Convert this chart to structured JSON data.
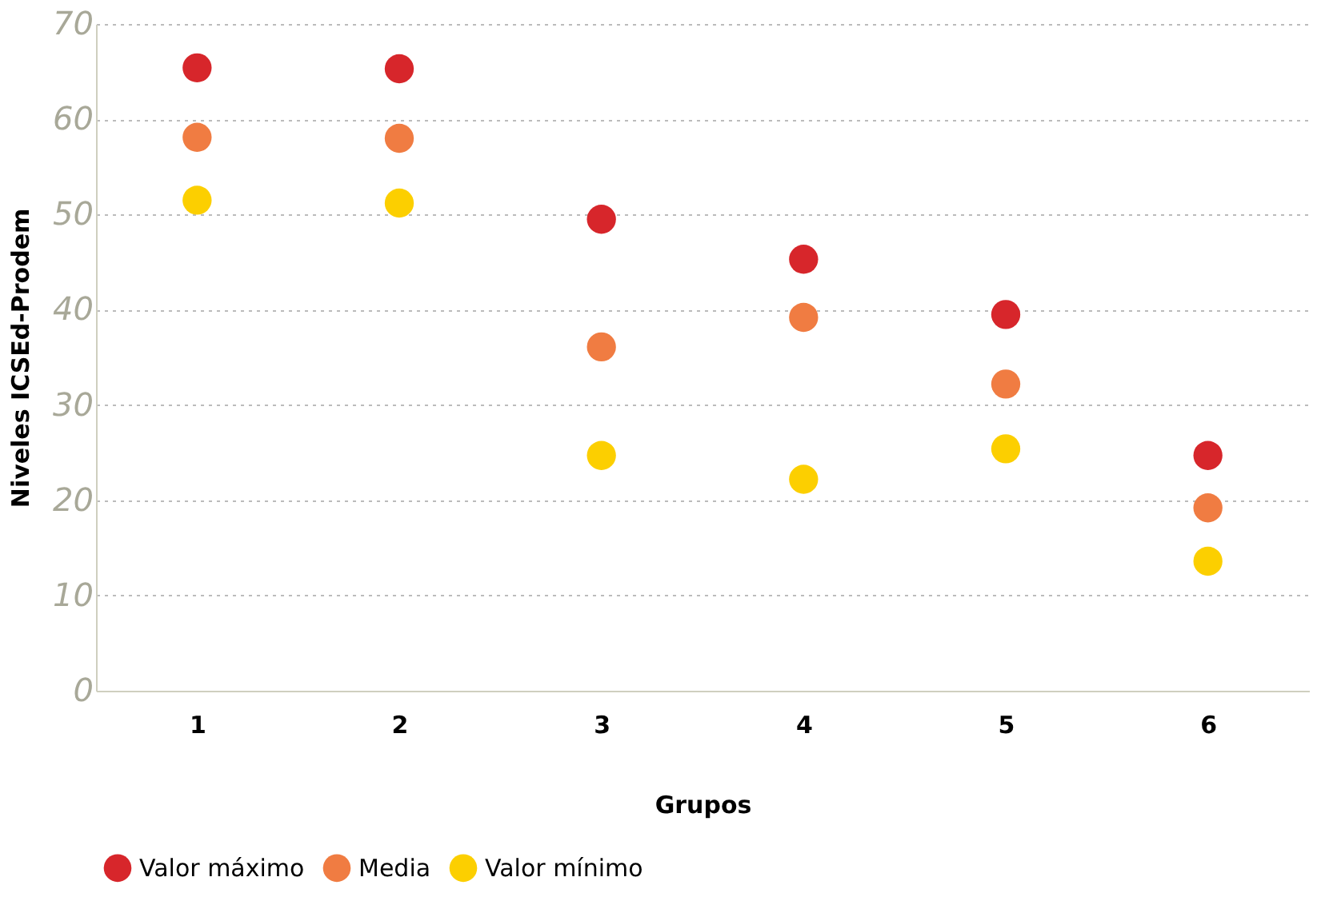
{
  "chart_data": {
    "type": "scatter",
    "xlabel": "Grupos",
    "ylabel": "Niveles ICSEd-Prodem",
    "categories": [
      "1",
      "2",
      "3",
      "4",
      "5",
      "6"
    ],
    "series": [
      {
        "name": "Valor máximo",
        "color": "#d7262b",
        "values": [
          65.4,
          65.3,
          49.5,
          45.3,
          39.5,
          24.7
        ]
      },
      {
        "name": "Media",
        "color": "#f07c42",
        "values": [
          58.1,
          58.0,
          36.1,
          39.2,
          32.2,
          19.2
        ]
      },
      {
        "name": "Valor mínimo",
        "color": "#fccf00",
        "values": [
          51.5,
          51.2,
          24.7,
          22.2,
          25.4,
          13.6
        ]
      }
    ],
    "ylim": [
      0,
      70
    ],
    "yticks": [
      0,
      10,
      20,
      30,
      40,
      50,
      60,
      70
    ],
    "grid": "y",
    "legend": "bottom",
    "marker": "circle"
  }
}
